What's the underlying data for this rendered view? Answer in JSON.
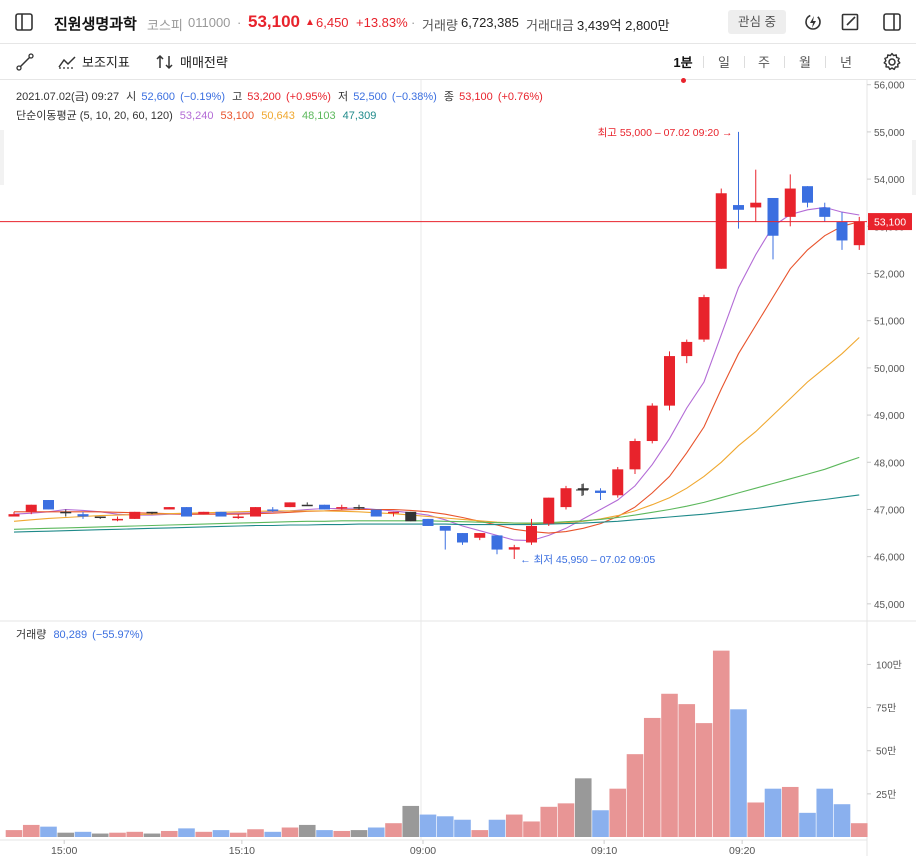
{
  "header": {
    "stock_name": "진원생명과학",
    "market": "코스피",
    "code": "011000",
    "dot": "·",
    "price": "53,100",
    "change_arrow": "▲",
    "change": "6,450",
    "change_pct": "+13.83%",
    "volume_label": "거래량",
    "volume_value": "6,723,385",
    "amount_label": "거래대금",
    "amount_value": "3,439억 2,800만",
    "watch_label": "관심 중"
  },
  "toolbar": {
    "indicator_label": "보조지표",
    "strategy_label": "매매전략",
    "periods": [
      "1분",
      "일",
      "주",
      "월",
      "년"
    ],
    "active_period": "1분"
  },
  "chart_data": {
    "type": "candlestick",
    "info": {
      "date": "2021.07.02(금) 09:27",
      "open_label": "시",
      "open": "52,600",
      "open_pct": "(−0.19%)",
      "high_label": "고",
      "high": "53,200",
      "high_pct": "(+0.95%)",
      "low_label": "저",
      "low": "52,500",
      "low_pct": "(−0.38%)",
      "close_label": "종",
      "close": "53,100",
      "close_pct": "(+0.76%)"
    },
    "ma_legend": {
      "label": "단순이동평균 (5, 10, 20, 60, 120)",
      "values": [
        "53,240",
        "53,100",
        "50,643",
        "48,103",
        "47,309"
      ],
      "colors": [
        "#b36bd6",
        "#e8532c",
        "#f0a830",
        "#5cb85c",
        "#1f8a8a"
      ]
    },
    "high_annotation": "최고 55,000 – 07.02 09:20 →",
    "low_annotation": "← 최저 45,950 – 07.02 09:05",
    "current_price_label": "53,100",
    "current_price": 53100,
    "price_axis": [
      "56,000",
      "55,000",
      "54,000",
      "53,000",
      "52,000",
      "51,000",
      "50,000",
      "49,000",
      "48,000",
      "47,000",
      "46,000",
      "45,000"
    ],
    "price_range": [
      44700,
      56100
    ],
    "volume_label": "거래량",
    "volume_value": "80,289",
    "volume_pct": "(−55.97%)",
    "volume_axis": [
      "100만",
      "75만",
      "50만",
      "25만"
    ],
    "volume_axis_values": [
      1000000,
      750000,
      500000,
      250000
    ],
    "volume_max": 1130000,
    "x_labels": [
      "15:00",
      "15:10",
      "09:00",
      "09:10",
      "09:20"
    ],
    "x_label_index": [
      3.2,
      13.5,
      24.0,
      34.5,
      42.5
    ],
    "session_break_index": 24.0,
    "candles": [
      {
        "o": 46900,
        "h": 46950,
        "l": 46850,
        "c": 46850,
        "v": 40000,
        "d": "up"
      },
      {
        "o": 46950,
        "h": 47100,
        "l": 46900,
        "c": 47100,
        "v": 70000,
        "d": "up"
      },
      {
        "o": 47200,
        "h": 47200,
        "l": 47000,
        "c": 47000,
        "v": 60000,
        "d": "down"
      },
      {
        "o": 46950,
        "h": 47000,
        "l": 46850,
        "c": 46950,
        "v": 25000,
        "d": "flat"
      },
      {
        "o": 46900,
        "h": 46950,
        "l": 46800,
        "c": 46850,
        "v": 30000,
        "d": "down"
      },
      {
        "o": 46850,
        "h": 46850,
        "l": 46800,
        "c": 46850,
        "v": 20000,
        "d": "flat"
      },
      {
        "o": 46800,
        "h": 46850,
        "l": 46750,
        "c": 46800,
        "v": 25000,
        "d": "up"
      },
      {
        "o": 46800,
        "h": 46950,
        "l": 46800,
        "c": 46950,
        "v": 30000,
        "d": "up"
      },
      {
        "o": 46950,
        "h": 46950,
        "l": 46900,
        "c": 46950,
        "v": 20000,
        "d": "flat"
      },
      {
        "o": 47000,
        "h": 47050,
        "l": 47000,
        "c": 47050,
        "v": 35000,
        "d": "up"
      },
      {
        "o": 47050,
        "h": 47050,
        "l": 46850,
        "c": 46850,
        "v": 50000,
        "d": "down"
      },
      {
        "o": 46900,
        "h": 46950,
        "l": 46900,
        "c": 46950,
        "v": 30000,
        "d": "up"
      },
      {
        "o": 46950,
        "h": 46950,
        "l": 46850,
        "c": 46850,
        "v": 40000,
        "d": "down"
      },
      {
        "o": 46850,
        "h": 46900,
        "l": 46800,
        "c": 46850,
        "v": 25000,
        "d": "up"
      },
      {
        "o": 46850,
        "h": 47050,
        "l": 46850,
        "c": 47050,
        "v": 45000,
        "d": "up"
      },
      {
        "o": 47000,
        "h": 47050,
        "l": 46950,
        "c": 47000,
        "v": 30000,
        "d": "down"
      },
      {
        "o": 47050,
        "h": 47150,
        "l": 47050,
        "c": 47150,
        "v": 55000,
        "d": "up"
      },
      {
        "o": 47100,
        "h": 47150,
        "l": 47100,
        "c": 47100,
        "v": 70000,
        "d": "flat"
      },
      {
        "o": 47100,
        "h": 47100,
        "l": 47000,
        "c": 47000,
        "v": 40000,
        "d": "down"
      },
      {
        "o": 47050,
        "h": 47100,
        "l": 47000,
        "c": 47050,
        "v": 35000,
        "d": "up"
      },
      {
        "o": 47050,
        "h": 47100,
        "l": 47000,
        "c": 47050,
        "v": 40000,
        "d": "flat"
      },
      {
        "o": 47000,
        "h": 47000,
        "l": 46850,
        "c": 46850,
        "v": 55000,
        "d": "down"
      },
      {
        "o": 46950,
        "h": 46950,
        "l": 46850,
        "c": 46950,
        "v": 80000,
        "d": "up"
      },
      {
        "o": 46950,
        "h": 46950,
        "l": 46750,
        "c": 46750,
        "v": 180000,
        "d": "flat"
      },
      {
        "o": 46800,
        "h": 46800,
        "l": 46650,
        "c": 46650,
        "v": 130000,
        "d": "down"
      },
      {
        "o": 46650,
        "h": 46650,
        "l": 46150,
        "c": 46550,
        "v": 120000,
        "d": "down"
      },
      {
        "o": 46500,
        "h": 46500,
        "l": 46250,
        "c": 46300,
        "v": 100000,
        "d": "down"
      },
      {
        "o": 46500,
        "h": 46500,
        "l": 46350,
        "c": 46400,
        "v": 40000,
        "d": "up"
      },
      {
        "o": 46450,
        "h": 46450,
        "l": 46050,
        "c": 46150,
        "v": 100000,
        "d": "down"
      },
      {
        "o": 46200,
        "h": 46250,
        "l": 45950,
        "c": 46150,
        "v": 130000,
        "d": "up"
      },
      {
        "o": 46300,
        "h": 46800,
        "l": 46250,
        "c": 46650,
        "v": 90000,
        "d": "up"
      },
      {
        "o": 46700,
        "h": 47250,
        "l": 46650,
        "c": 47250,
        "v": 175000,
        "d": "up"
      },
      {
        "o": 47050,
        "h": 47500,
        "l": 47000,
        "c": 47450,
        "v": 195000,
        "d": "up"
      },
      {
        "o": 47450,
        "h": 47550,
        "l": 47300,
        "c": 47450,
        "v": 340000,
        "d": "flat"
      },
      {
        "o": 47400,
        "h": 47450,
        "l": 47200,
        "c": 47350,
        "v": 155000,
        "d": "down"
      },
      {
        "o": 47300,
        "h": 47900,
        "l": 47250,
        "c": 47850,
        "v": 280000,
        "d": "up"
      },
      {
        "o": 47850,
        "h": 48500,
        "l": 47750,
        "c": 48450,
        "v": 480000,
        "d": "up"
      },
      {
        "o": 48450,
        "h": 49250,
        "l": 48400,
        "c": 49200,
        "v": 690000,
        "d": "up"
      },
      {
        "o": 49200,
        "h": 50350,
        "l": 49100,
        "c": 50250,
        "v": 830000,
        "d": "up"
      },
      {
        "o": 50250,
        "h": 50600,
        "l": 50100,
        "c": 50550,
        "v": 770000,
        "d": "up"
      },
      {
        "o": 50600,
        "h": 51550,
        "l": 50550,
        "c": 51500,
        "v": 660000,
        "d": "up"
      },
      {
        "o": 52100,
        "h": 53800,
        "l": 52100,
        "c": 53700,
        "v": 1080000,
        "d": "up"
      },
      {
        "o": 53450,
        "h": 55000,
        "l": 52950,
        "c": 53350,
        "v": 740000,
        "d": "down"
      },
      {
        "o": 53400,
        "h": 54200,
        "l": 53100,
        "c": 53500,
        "v": 200000,
        "d": "up"
      },
      {
        "o": 53600,
        "h": 53600,
        "l": 52300,
        "c": 52800,
        "v": 280000,
        "d": "down"
      },
      {
        "o": 53200,
        "h": 54100,
        "l": 53000,
        "c": 53800,
        "v": 290000,
        "d": "up"
      },
      {
        "o": 53850,
        "h": 53850,
        "l": 53400,
        "c": 53500,
        "v": 140000,
        "d": "down"
      },
      {
        "o": 53400,
        "h": 53500,
        "l": 53100,
        "c": 53200,
        "v": 280000,
        "d": "down"
      },
      {
        "o": 53100,
        "h": 53300,
        "l": 52500,
        "c": 52700,
        "v": 190000,
        "d": "down"
      },
      {
        "o": 52600,
        "h": 53200,
        "l": 52500,
        "c": 53100,
        "v": 80000,
        "d": "up"
      }
    ],
    "ma_lines": [
      {
        "name": "MA5",
        "color": "#b36bd6",
        "values": [
          46900,
          46920,
          46950,
          47000,
          46980,
          46950,
          46900,
          46880,
          46880,
          46900,
          46900,
          46900,
          46910,
          46920,
          46930,
          46950,
          46970,
          47000,
          47020,
          47020,
          47030,
          47000,
          46970,
          46930,
          46880,
          46780,
          46650,
          46550,
          46450,
          46350,
          46340,
          46450,
          46600,
          46800,
          47000,
          47200,
          47500,
          47950,
          48500,
          49150,
          49700,
          50700,
          51700,
          52400,
          53000,
          53250,
          53350,
          53400,
          53300,
          53240
        ]
      },
      {
        "name": "MA10",
        "color": "#e8532c",
        "values": [
          46950,
          46950,
          46950,
          46950,
          46950,
          46950,
          46940,
          46930,
          46920,
          46910,
          46900,
          46900,
          46900,
          46900,
          46910,
          46920,
          46940,
          46960,
          46970,
          46990,
          47000,
          47000,
          47000,
          46980,
          46950,
          46900,
          46830,
          46750,
          46670,
          46580,
          46530,
          46500,
          46530,
          46600,
          46700,
          46850,
          47050,
          47350,
          47700,
          48200,
          48750,
          49550,
          50300,
          50900,
          51500,
          52100,
          52500,
          52800,
          53000,
          53100
        ]
      },
      {
        "name": "MA20",
        "color": "#f0a830",
        "values": [
          46750,
          46780,
          46810,
          46830,
          46850,
          46870,
          46880,
          46890,
          46900,
          46910,
          46920,
          46930,
          46940,
          46950,
          46960,
          46970,
          46970,
          46970,
          46970,
          46960,
          46950,
          46930,
          46910,
          46880,
          46850,
          46820,
          46790,
          46760,
          46730,
          46710,
          46700,
          46700,
          46720,
          46750,
          46800,
          46870,
          46970,
          47100,
          47250,
          47450,
          47700,
          48000,
          48350,
          48650,
          49000,
          49350,
          49700,
          50000,
          50300,
          50643
        ]
      },
      {
        "name": "MA60",
        "color": "#5cb85c",
        "values": [
          46580,
          46590,
          46600,
          46610,
          46620,
          46630,
          46640,
          46650,
          46660,
          46670,
          46680,
          46690,
          46700,
          46710,
          46720,
          46730,
          46740,
          46750,
          46750,
          46760,
          46760,
          46760,
          46760,
          46760,
          46760,
          46750,
          46740,
          46730,
          46720,
          46710,
          46710,
          46720,
          46740,
          46760,
          46790,
          46830,
          46880,
          46940,
          47000,
          47070,
          47150,
          47250,
          47350,
          47450,
          47550,
          47650,
          47750,
          47850,
          47980,
          48103
        ]
      },
      {
        "name": "MA120",
        "color": "#1f8a8a",
        "values": [
          46520,
          46530,
          46540,
          46550,
          46560,
          46570,
          46580,
          46590,
          46600,
          46610,
          46620,
          46630,
          46640,
          46650,
          46660,
          46660,
          46670,
          46670,
          46680,
          46680,
          46690,
          46690,
          46690,
          46690,
          46690,
          46690,
          46680,
          46680,
          46680,
          46680,
          46680,
          46690,
          46700,
          46710,
          46730,
          46750,
          46780,
          46810,
          46840,
          46870,
          46900,
          46940,
          46980,
          47020,
          47070,
          47120,
          47170,
          47210,
          47260,
          47309
        ]
      }
    ]
  }
}
